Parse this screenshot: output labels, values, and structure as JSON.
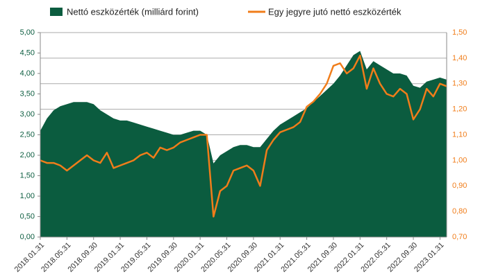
{
  "chart_data": {
    "type": "area",
    "categories": [
      "2018.01.31",
      null,
      null,
      null,
      "2018.05.31",
      null,
      null,
      null,
      "2018.09.30",
      null,
      null,
      null,
      "2019.01.31",
      null,
      null,
      null,
      "2019.05.31",
      null,
      null,
      null,
      "2019.09.30",
      null,
      null,
      null,
      "2020.01.31",
      null,
      null,
      null,
      "2020.05.31",
      null,
      null,
      null,
      "2020.09.30",
      null,
      null,
      null,
      "2021.01.31",
      null,
      null,
      null,
      "2021.05.31",
      null,
      null,
      null,
      "2021.09.30",
      null,
      null,
      null,
      "2022.01.31",
      null,
      null,
      null,
      "2022.05.31",
      null,
      null,
      null,
      "2022.09.30",
      null,
      null,
      null,
      "2023.01.31",
      null
    ],
    "series": [
      {
        "name": "Nettó eszközérték (milliárd forint)",
        "type": "area",
        "color": "#0b5c3f",
        "values": [
          2.6,
          2.9,
          3.1,
          3.2,
          3.25,
          3.3,
          3.3,
          3.3,
          3.25,
          3.1,
          3.0,
          2.9,
          2.85,
          2.85,
          2.8,
          2.75,
          2.7,
          2.65,
          2.6,
          2.55,
          2.5,
          2.5,
          2.55,
          2.6,
          2.6,
          2.5,
          1.8,
          2.0,
          2.1,
          2.2,
          2.25,
          2.25,
          2.2,
          2.2,
          2.4,
          2.6,
          2.75,
          2.85,
          2.95,
          3.05,
          3.15,
          3.3,
          3.45,
          3.6,
          3.75,
          3.95,
          4.2,
          4.45,
          4.55,
          4.1,
          4.3,
          4.2,
          4.1,
          4.0,
          4.0,
          3.95,
          3.7,
          3.65,
          3.8,
          3.85,
          3.9,
          3.85
        ]
      },
      {
        "name": "Egy jegyre jutó nettó eszközérték",
        "type": "line",
        "color": "#f07d1a",
        "axis": "y2",
        "values": [
          1.0,
          0.99,
          0.99,
          0.98,
          0.96,
          0.98,
          1.0,
          1.02,
          1.0,
          0.99,
          1.03,
          0.97,
          0.98,
          0.99,
          1.0,
          1.02,
          1.03,
          1.01,
          1.05,
          1.04,
          1.05,
          1.07,
          1.08,
          1.09,
          1.1,
          1.1,
          0.78,
          0.88,
          0.9,
          0.96,
          0.97,
          0.98,
          0.96,
          0.9,
          1.04,
          1.08,
          1.11,
          1.12,
          1.13,
          1.15,
          1.21,
          1.23,
          1.26,
          1.3,
          1.37,
          1.38,
          1.34,
          1.36,
          1.41,
          1.28,
          1.36,
          1.3,
          1.26,
          1.25,
          1.28,
          1.26,
          1.16,
          1.2,
          1.28,
          1.25,
          1.3,
          1.29
        ]
      }
    ],
    "ylim": [
      0,
      5
    ],
    "yticks": [
      {
        "value": 0,
        "label": "0,00"
      },
      {
        "value": 0.5,
        "label": "0,50"
      },
      {
        "value": 1,
        "label": "1,00"
      },
      {
        "value": 1.5,
        "label": "1,50"
      },
      {
        "value": 2,
        "label": "2,00"
      },
      {
        "value": 2.5,
        "label": "2,50"
      },
      {
        "value": 3,
        "label": "3,00"
      },
      {
        "value": 3.5,
        "label": "3,50"
      },
      {
        "value": 4,
        "label": "4,00"
      },
      {
        "value": 4.5,
        "label": "4,50"
      },
      {
        "value": 5,
        "label": "5,00"
      }
    ],
    "y2lim": [
      0.7,
      1.5
    ],
    "y2ticks": [
      {
        "value": 0.7,
        "label": "0,70"
      },
      {
        "value": 0.8,
        "label": "0,80"
      },
      {
        "value": 0.9,
        "label": "0,90"
      },
      {
        "value": 1.0,
        "label": "1,00"
      },
      {
        "value": 1.1,
        "label": "1,10"
      },
      {
        "value": 1.2,
        "label": "1,20"
      },
      {
        "value": 1.3,
        "label": "1,30"
      },
      {
        "value": 1.4,
        "label": "1,40"
      },
      {
        "value": 1.5,
        "label": "1,50"
      }
    ],
    "grid": true,
    "legend": "top"
  }
}
